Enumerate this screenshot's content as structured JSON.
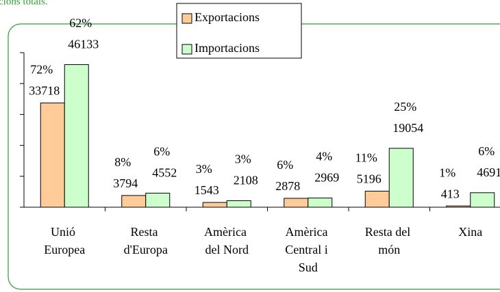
{
  "chart_data": {
    "type": "bar",
    "title": "cions totals.",
    "categories": [
      "Unió Europea",
      "Resta d'Europa",
      "Amèrica del Nord",
      "Amèrica Central i Sud",
      "Resta del món",
      "Xina"
    ],
    "series": [
      {
        "name": "Exportacions",
        "color": "#ffcc99",
        "values": [
          33718,
          3794,
          1543,
          2878,
          5196,
          413
        ],
        "percent_labels": [
          "72%",
          "8%",
          "3%",
          "6%",
          "11%",
          "1%"
        ]
      },
      {
        "name": "Importacions",
        "color": "#ccffcc",
        "values": [
          46133,
          4552,
          2108,
          2969,
          19054,
          4691
        ],
        "percent_labels": [
          "62%",
          "6%",
          "3%",
          "4%",
          "25%",
          "6%"
        ]
      }
    ],
    "ylim": [
      0,
      50000
    ],
    "yticks": [
      0,
      10000,
      20000,
      30000,
      40000,
      50000
    ],
    "legend": "top"
  }
}
